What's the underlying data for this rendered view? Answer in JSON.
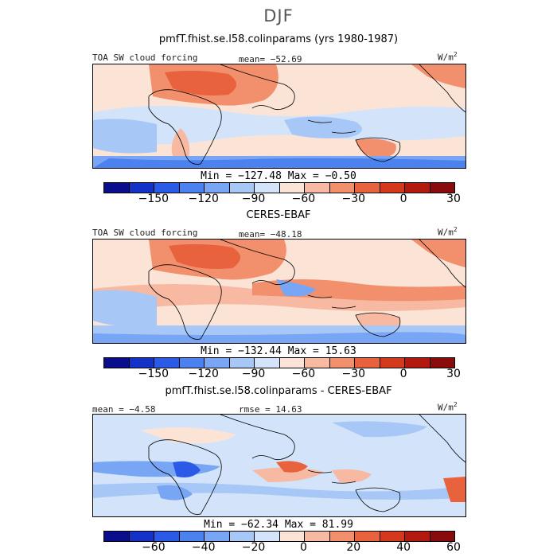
{
  "season": "DJF",
  "panels": [
    {
      "title": "pmfT.fhist.se.l58.colinparams (yrs 1980-1987)",
      "left_label": "TOA SW cloud forcing",
      "center_label": "mean= −52.69",
      "units_base": "W/m",
      "units_exp": "2",
      "minmax": "Min = −127.48 Max =  −0.50",
      "colorbar": {
        "colors": [
          "#0a0e8c",
          "#1432c8",
          "#2a5ae6",
          "#4b82f0",
          "#78a6f5",
          "#a7c8f7",
          "#d3e4fa",
          "#fbe3d6",
          "#f7b9a1",
          "#f28f6c",
          "#e8623e",
          "#d4391e",
          "#b4190f",
          "#8a0b0b"
        ],
        "tick_labels": [
          "−150",
          "−120",
          "−90",
          "−60",
          "−30",
          "0",
          "30"
        ]
      }
    },
    {
      "title": "CERES-EBAF",
      "left_label": "TOA SW cloud forcing",
      "center_label": "mean= −48.18",
      "units_base": "W/m",
      "units_exp": "2",
      "minmax": "Min = −132.44 Max =  15.63",
      "colorbar": {
        "colors": [
          "#0a0e8c",
          "#1432c8",
          "#2a5ae6",
          "#4b82f0",
          "#78a6f5",
          "#a7c8f7",
          "#d3e4fa",
          "#fbe3d6",
          "#f7b9a1",
          "#f28f6c",
          "#e8623e",
          "#d4391e",
          "#b4190f",
          "#8a0b0b"
        ],
        "tick_labels": [
          "−150",
          "−120",
          "−90",
          "−60",
          "−30",
          "0",
          "30"
        ]
      }
    },
    {
      "title": "pmfT.fhist.se.l58.colinparams - CERES-EBAF",
      "left_label": "mean =  −4.58",
      "center_label": "rmse =  14.63",
      "units_base": "W/m",
      "units_exp": "2",
      "minmax": "Min = −62.34 Max =  81.99",
      "colorbar": {
        "colors": [
          "#0a0e8c",
          "#1432c8",
          "#2a5ae6",
          "#4b82f0",
          "#78a6f5",
          "#a7c8f7",
          "#d3e4fa",
          "#fbe3d6",
          "#f7b9a1",
          "#f28f6c",
          "#e8623e",
          "#d4391e",
          "#b4190f",
          "#8a0b0b"
        ],
        "tick_labels": [
          "−60",
          "−40",
          "−20",
          "0",
          "20",
          "40",
          "60"
        ]
      }
    }
  ]
}
